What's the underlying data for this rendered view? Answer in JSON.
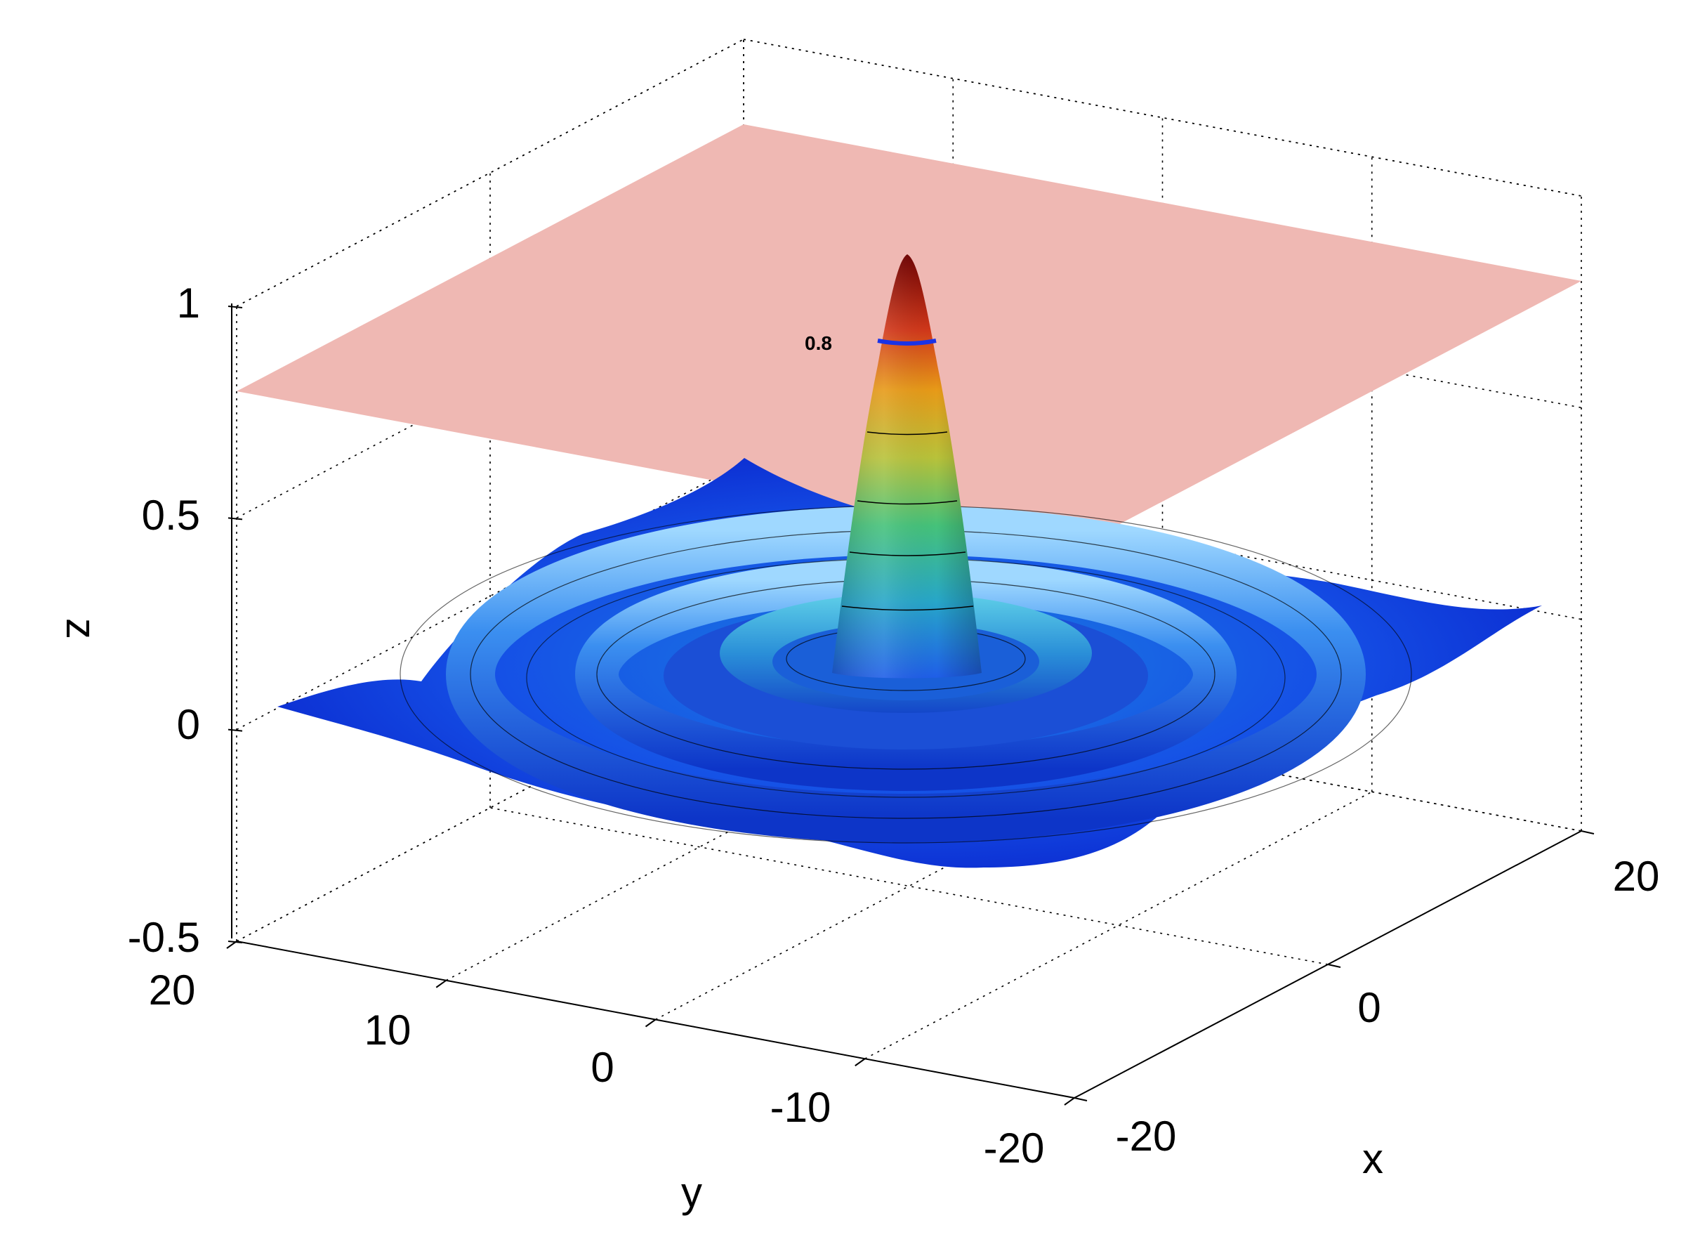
{
  "chart_data": {
    "type": "surface3d",
    "function": "sin(r)/r with a horizontal plane at z = 0.8",
    "xlabel": "x",
    "ylabel": "y",
    "zlabel": "z",
    "xlim": [
      -20,
      20
    ],
    "ylim": [
      -20,
      20
    ],
    "zlim": [
      -0.5,
      1
    ],
    "x_ticks": [
      -20,
      0,
      20
    ],
    "y_ticks": [
      20,
      10,
      0,
      -10,
      -20
    ],
    "z_ticks": [
      1,
      0.5,
      0,
      -0.5
    ],
    "x_tick_labels": [
      "-20",
      "0",
      "20"
    ],
    "y_tick_labels": [
      "20",
      "10",
      "0",
      "-10",
      "-20"
    ],
    "z_tick_labels": [
      "1",
      "0.5",
      "0",
      "-0.5"
    ],
    "plane": {
      "z": 0.8,
      "color": "#efb8b3"
    },
    "contour_label": {
      "text": "0.8",
      "level": 0.8,
      "color": "#1a33e6"
    },
    "colormap": "jet",
    "grid": true,
    "colors": {
      "low": "#0a2fd6",
      "mid": "#2fbf9a",
      "high": "#7a0000"
    }
  }
}
